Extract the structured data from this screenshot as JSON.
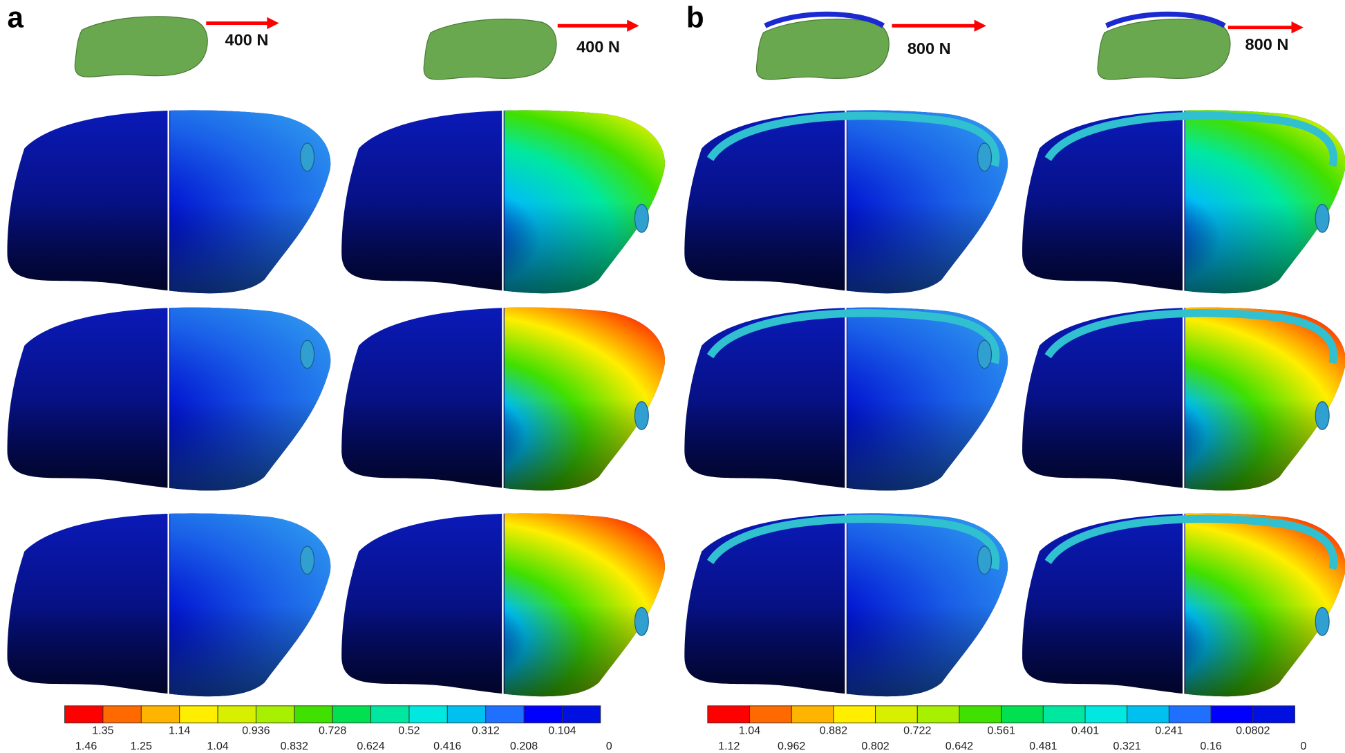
{
  "panels": [
    {
      "label": "a",
      "forces": [
        "400 N",
        "400 N"
      ],
      "colorbar": {
        "labels": [
          "1.46",
          "1.35",
          "1.25",
          "1.14",
          "1.04",
          "0.936",
          "0.832",
          "0.728",
          "0.624",
          "0.52",
          "0.416",
          "0.312",
          "0.208",
          "0.104",
          "0"
        ],
        "colors": [
          "#ff0000",
          "#ff6a00",
          "#ffb400",
          "#ffee00",
          "#d8f000",
          "#a6f000",
          "#40e000",
          "#00e050",
          "#00e8a0",
          "#00e8e0",
          "#00c0f0",
          "#2070ff",
          "#0000ff",
          "#0010e0"
        ]
      }
    },
    {
      "label": "b",
      "forces": [
        "800 N",
        "800 N"
      ],
      "colorbar": {
        "labels": [
          "1.12",
          "1.04",
          "0.962",
          "0.882",
          "0.802",
          "0.722",
          "0.642",
          "0.561",
          "0.481",
          "0.401",
          "0.321",
          "0.241",
          "0.16",
          "0.0802",
          "0"
        ],
        "colors": [
          "#ff0000",
          "#ff6a00",
          "#ffb400",
          "#ffee00",
          "#d8f000",
          "#a6f000",
          "#40e000",
          "#00e050",
          "#00e8a0",
          "#00e8e0",
          "#00c0f0",
          "#2070ff",
          "#0000ff",
          "#0010e0"
        ]
      }
    }
  ]
}
